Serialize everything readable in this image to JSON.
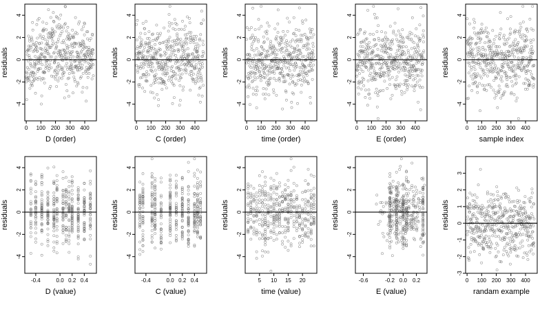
{
  "chart_data": [
    {
      "type": "scatter",
      "xlabel": "D (order)",
      "ylabel": "residuals",
      "xlim": [
        -10,
        480
      ],
      "ylim": [
        -5.5,
        5
      ],
      "x_ticks": [
        0,
        100,
        200,
        300,
        400
      ],
      "y_ticks": [
        -4,
        -2,
        0,
        2,
        4
      ],
      "y_tick_labels": [
        "-4",
        "-2",
        "0",
        "2",
        "4"
      ],
      "x_tick_labels": [
        "0",
        "100",
        "200",
        "300",
        "400"
      ],
      "hline": 0,
      "grid": false,
      "generator": {
        "kind": "index",
        "n": 460,
        "seed": 11,
        "sd": 1.5,
        "trend": "arch"
      }
    },
    {
      "type": "scatter",
      "xlabel": "C (order)",
      "ylabel": "residuals",
      "xlim": [
        -10,
        480
      ],
      "ylim": [
        -5.5,
        5
      ],
      "x_ticks": [
        0,
        100,
        200,
        300,
        400
      ],
      "y_ticks": [
        -4,
        -2,
        0,
        2,
        4
      ],
      "y_tick_labels": [
        "-4",
        "-2",
        "0",
        "2",
        "4"
      ],
      "x_tick_labels": [
        "0",
        "100",
        "200",
        "300",
        "400"
      ],
      "hline": 0,
      "grid": false,
      "generator": {
        "kind": "index",
        "n": 460,
        "seed": 23,
        "sd": 1.6,
        "trend": "flat"
      }
    },
    {
      "type": "scatter",
      "xlabel": "time (order)",
      "ylabel": "residuals",
      "xlim": [
        -10,
        480
      ],
      "ylim": [
        -5.5,
        5
      ],
      "x_ticks": [
        0,
        100,
        200,
        300,
        400
      ],
      "y_ticks": [
        -4,
        -2,
        0,
        2,
        4
      ],
      "y_tick_labels": [
        "-4",
        "-2",
        "0",
        "2",
        "4"
      ],
      "x_tick_labels": [
        "0",
        "100",
        "200",
        "300",
        "400"
      ],
      "hline": 0,
      "grid": false,
      "generator": {
        "kind": "index",
        "n": 460,
        "seed": 37,
        "sd": 1.6,
        "trend": "flat"
      }
    },
    {
      "type": "scatter",
      "xlabel": "E (order)",
      "ylabel": "residuals",
      "xlim": [
        -10,
        480
      ],
      "ylim": [
        -5.5,
        5
      ],
      "x_ticks": [
        0,
        100,
        200,
        300,
        400
      ],
      "y_ticks": [
        -4,
        -2,
        0,
        2,
        4
      ],
      "y_tick_labels": [
        "-4",
        "-2",
        "0",
        "2",
        "4"
      ],
      "x_tick_labels": [
        "0",
        "100",
        "200",
        "300",
        "400"
      ],
      "hline": 0,
      "grid": false,
      "generator": {
        "kind": "index",
        "n": 460,
        "seed": 41,
        "sd": 1.6,
        "trend": "flat"
      }
    },
    {
      "type": "scatter",
      "xlabel": "sample index",
      "ylabel": "residuals",
      "xlim": [
        -10,
        480
      ],
      "ylim": [
        -5.5,
        5
      ],
      "x_ticks": [
        0,
        100,
        200,
        300,
        400
      ],
      "y_ticks": [
        -4,
        -2,
        0,
        2,
        4
      ],
      "y_tick_labels": [
        "-4",
        "-2",
        "0",
        "2",
        "4"
      ],
      "x_tick_labels": [
        "0",
        "100",
        "200",
        "300",
        "400"
      ],
      "hline": 0,
      "grid": false,
      "generator": {
        "kind": "index",
        "n": 460,
        "seed": 53,
        "sd": 1.6,
        "trend": "flat"
      }
    },
    {
      "type": "scatter",
      "xlabel": "D (value)",
      "ylabel": "residuals",
      "xlim": [
        -0.58,
        0.6
      ],
      "ylim": [
        -5.5,
        5
      ],
      "x_ticks": [
        -0.4,
        0,
        0.2,
        0.4
      ],
      "y_ticks": [
        -4,
        -2,
        0,
        2,
        4
      ],
      "y_tick_labels": [
        "-4",
        "-2",
        "0",
        "2",
        "4"
      ],
      "x_tick_labels": [
        "-0.4",
        "0.0",
        "0.2",
        "0.4"
      ],
      "hline": 0,
      "grid": false,
      "generator": {
        "kind": "groups",
        "n": 460,
        "seed": 61,
        "sd": 1.5,
        "groups": [
          -0.48,
          -0.4,
          -0.3,
          -0.2,
          -0.1,
          -0.05,
          0.05,
          0.1,
          0.15,
          0.2,
          0.3,
          0.4,
          0.5
        ]
      }
    },
    {
      "type": "scatter",
      "xlabel": "C (value)",
      "ylabel": "residuals",
      "xlim": [
        -0.58,
        0.6
      ],
      "ylim": [
        -5.5,
        5
      ],
      "x_ticks": [
        -0.4,
        0,
        0.2,
        0.4
      ],
      "y_ticks": [
        -4,
        -2,
        0,
        2,
        4
      ],
      "y_tick_labels": [
        "-4",
        "-2",
        "0",
        "2",
        "4"
      ],
      "x_tick_labels": [
        "-0.4",
        "0.0",
        "0.2",
        "0.4"
      ],
      "hline": 0,
      "grid": false,
      "generator": {
        "kind": "groups",
        "n": 460,
        "seed": 73,
        "sd": 1.6,
        "groups": [
          -0.5,
          -0.45,
          -0.3,
          -0.25,
          -0.15,
          0.0,
          0.1,
          0.2,
          0.3,
          0.4,
          0.45,
          0.5
        ]
      }
    },
    {
      "type": "scatter",
      "xlabel": "time (value)",
      "ylabel": "residuals",
      "xlim": [
        0,
        25
      ],
      "ylim": [
        -5.5,
        5
      ],
      "x_ticks": [
        5,
        10,
        15,
        20
      ],
      "y_ticks": [
        -4,
        -2,
        0,
        2,
        4
      ],
      "y_tick_labels": [
        "-4",
        "-2",
        "0",
        "2",
        "4"
      ],
      "x_tick_labels": [
        "5",
        "10",
        "15",
        "20"
      ],
      "hline": 0,
      "grid": false,
      "generator": {
        "kind": "groups",
        "n": 460,
        "seed": 83,
        "sd": 1.6,
        "groups": [
          1,
          2,
          3,
          4,
          5,
          6,
          7,
          8,
          9,
          10,
          11,
          12,
          13,
          14,
          15,
          16,
          17,
          18,
          19,
          20,
          21,
          22,
          23,
          24
        ]
      }
    },
    {
      "type": "scatter",
      "xlabel": "E (value)",
      "ylabel": "residuals",
      "xlim": [
        -0.72,
        0.36
      ],
      "ylim": [
        -5.5,
        5
      ],
      "x_ticks": [
        -0.6,
        -0.2,
        0,
        0.2
      ],
      "y_ticks": [
        -4,
        -2,
        0,
        2,
        4
      ],
      "y_tick_labels": [
        "-4",
        "-2",
        "0",
        "2",
        "4"
      ],
      "x_tick_labels": [
        "-0.6",
        "-0.2",
        "0.0",
        "0.2"
      ],
      "hline": 0,
      "grid": false,
      "generator": {
        "kind": "spread",
        "n": 460,
        "seed": 97,
        "sd": 1.5,
        "center": 0.0,
        "spread": 0.18,
        "groups": [
          -0.2,
          -0.1,
          0.0,
          0.05,
          0.3
        ]
      }
    },
    {
      "type": "scatter",
      "xlabel": "randam example",
      "ylabel": "residuals",
      "xlim": [
        -10,
        480
      ],
      "ylim": [
        -3,
        4
      ],
      "x_ticks": [
        0,
        100,
        200,
        300,
        400
      ],
      "y_ticks": [
        -3,
        -2,
        -1,
        0,
        1,
        2,
        3
      ],
      "y_tick_labels": [
        "-3",
        "-2",
        "-1",
        "0",
        "1",
        "2",
        "3"
      ],
      "x_tick_labels": [
        "0",
        "100",
        "200",
        "300",
        "400"
      ],
      "hline": 0,
      "grid": false,
      "generator": {
        "kind": "index",
        "n": 460,
        "seed": 101,
        "sd": 1.0,
        "trend": "flat"
      }
    }
  ],
  "colors": {
    "point": "#666666",
    "axis": "#000000",
    "hline": "#000000"
  }
}
